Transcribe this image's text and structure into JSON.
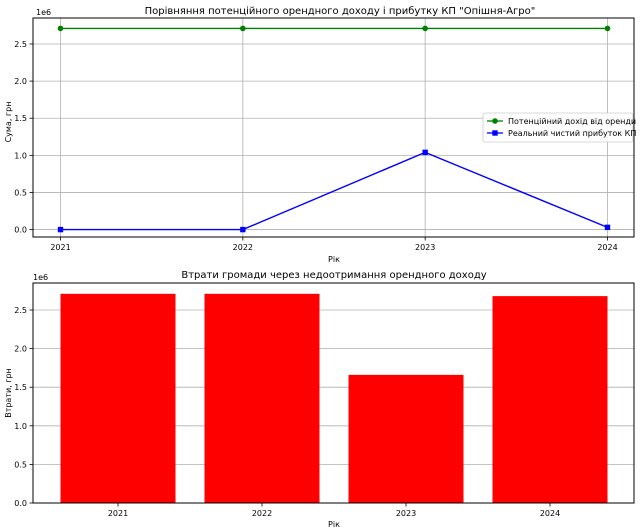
{
  "chart_data": [
    {
      "type": "line",
      "title": "Порівняння потенційного орендного доходу і прибутку КП \"Опішня-Агро\"",
      "xlabel": "Рік",
      "ylabel": "Сума, грн",
      "offset_text": "1e6",
      "categories": [
        "2021",
        "2022",
        "2023",
        "2024"
      ],
      "ylim": [
        -0.1,
        2.85
      ],
      "yticks": [
        0.0,
        0.5,
        1.0,
        1.5,
        2.0,
        2.5
      ],
      "ytick_labels": [
        "0.0",
        "0.5",
        "1.0",
        "1.5",
        "2.0",
        "2.5"
      ],
      "grid": true,
      "legend": "center-right",
      "series": [
        {
          "name": "Потенційний дохід від оренди",
          "color": "#008000",
          "marker": "circle",
          "values": [
            2.71,
            2.71,
            2.71,
            2.71
          ]
        },
        {
          "name": "Реальний чистий прибуток КП",
          "color": "#0000ff",
          "marker": "square",
          "values": [
            0.0,
            0.0,
            1.04,
            0.03
          ]
        }
      ]
    },
    {
      "type": "bar",
      "title": "Втрати громади через недоотримання орендного доходу",
      "xlabel": "Рік",
      "ylabel": "Втрати, грн",
      "offset_text": "1e6",
      "categories": [
        "2021",
        "2022",
        "2023",
        "2024"
      ],
      "values": [
        2.71,
        2.71,
        1.66,
        2.68
      ],
      "color": "#ff0000",
      "ylim": [
        0,
        2.85
      ],
      "yticks": [
        0.0,
        0.5,
        1.0,
        1.5,
        2.0,
        2.5
      ],
      "ytick_labels": [
        "0.0",
        "0.5",
        "1.0",
        "1.5",
        "2.0",
        "2.5"
      ],
      "grid": "y"
    }
  ]
}
